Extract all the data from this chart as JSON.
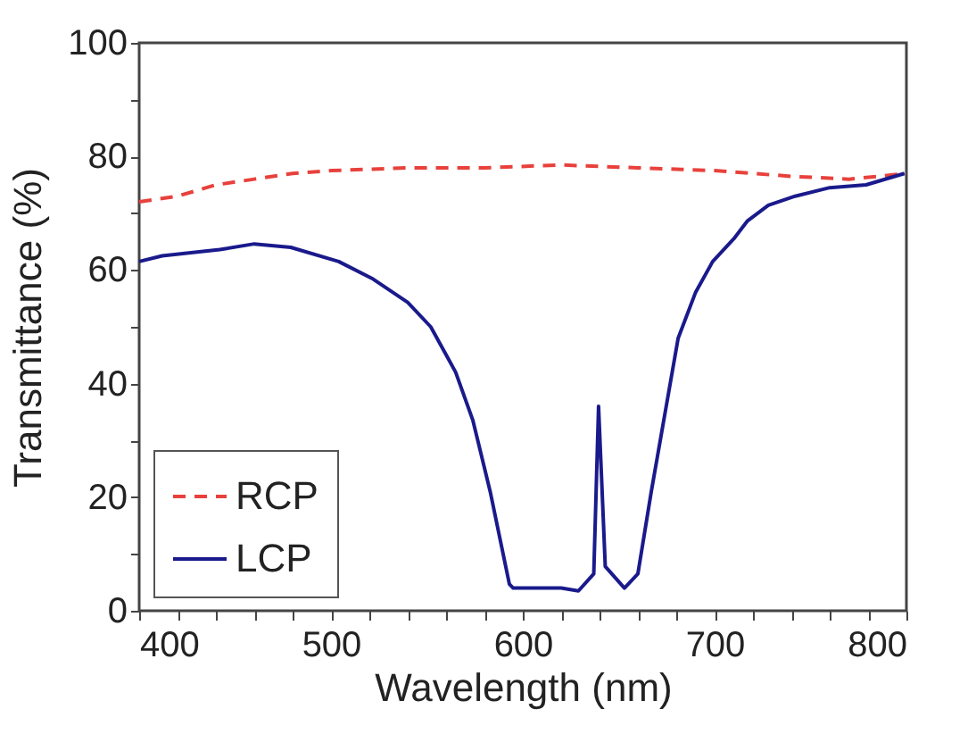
{
  "chart_data": {
    "type": "line",
    "xlabel": "Wavelength (nm)",
    "ylabel": "Transmittance (%)",
    "xlim": [
      400,
      800
    ],
    "ylim": [
      0,
      100
    ],
    "xticks": [
      400,
      {
        "value": 420,
        "label": null
      },
      {
        "value": 440,
        "label": null
      },
      {
        "value": 460,
        "label": null
      },
      {
        "value": 480,
        "label": null
      },
      500,
      {
        "value": 520,
        "label": null
      },
      {
        "value": 540,
        "label": null
      },
      {
        "value": 560,
        "label": null
      },
      {
        "value": 580,
        "label": null
      },
      600,
      {
        "value": 620,
        "label": null
      },
      {
        "value": 640,
        "label": null
      },
      {
        "value": 660,
        "label": null
      },
      {
        "value": 680,
        "label": null
      },
      700,
      {
        "value": 720,
        "label": null
      },
      {
        "value": 740,
        "label": null
      },
      {
        "value": 760,
        "label": null
      },
      {
        "value": 780,
        "label": null
      },
      800
    ],
    "yticks": [
      0,
      {
        "value": 10,
        "label": null
      },
      20,
      {
        "value": 30,
        "label": null
      },
      40,
      {
        "value": 50,
        "label": null
      },
      60,
      {
        "value": 70,
        "label": null
      },
      80,
      {
        "value": 90,
        "label": null
      },
      100
    ],
    "grid": false,
    "legend": "bottom left",
    "marker": "none",
    "series": [
      {
        "name": "RCP",
        "color": "#e8413c",
        "line_style": "dashed",
        "x": [
          400,
          420,
          440,
          460,
          480,
          500,
          540,
          580,
          620,
          660,
          700,
          740,
          770,
          800
        ],
        "values": [
          72,
          73,
          75,
          76,
          77,
          77.5,
          78,
          78,
          78.5,
          78,
          77.5,
          76.5,
          76,
          77
        ]
      },
      {
        "name": "LCP",
        "color": "#1a1a8c",
        "line_style": "solid",
        "x": [
          400,
          412,
          442,
          460,
          479,
          504,
          522,
          540,
          552,
          565,
          574,
          583,
          593,
          595,
          620,
          629,
          637,
          639.5,
          643,
          653,
          660,
          667,
          681,
          690,
          699,
          710,
          717,
          728,
          742,
          760,
          779,
          799
        ],
        "values": [
          61.5,
          62.5,
          63.6,
          64.6,
          64,
          61.5,
          58.4,
          54.3,
          50,
          42,
          33.5,
          21,
          4.7,
          4,
          4,
          3.5,
          6.5,
          36,
          7.8,
          4,
          6.5,
          21,
          48,
          56,
          61.5,
          65.5,
          68.6,
          71.4,
          73,
          74.5,
          75,
          77
        ]
      }
    ]
  }
}
